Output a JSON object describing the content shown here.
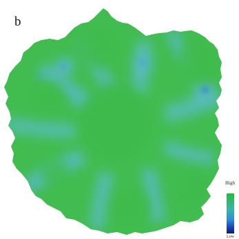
{
  "figure": {
    "panel_label": "b",
    "legend": {
      "high_label": "High",
      "low_label": "Low",
      "gradient_colors": [
        "#2cb83c",
        "#3ab4a8",
        "#2f8fd8",
        "#1f3fb0",
        "#101c70"
      ]
    },
    "map_colors": {
      "base": "#3dbb4a",
      "mid": "#54c19a",
      "low": "#5ab9d4",
      "spot": "#3f95d6"
    }
  }
}
